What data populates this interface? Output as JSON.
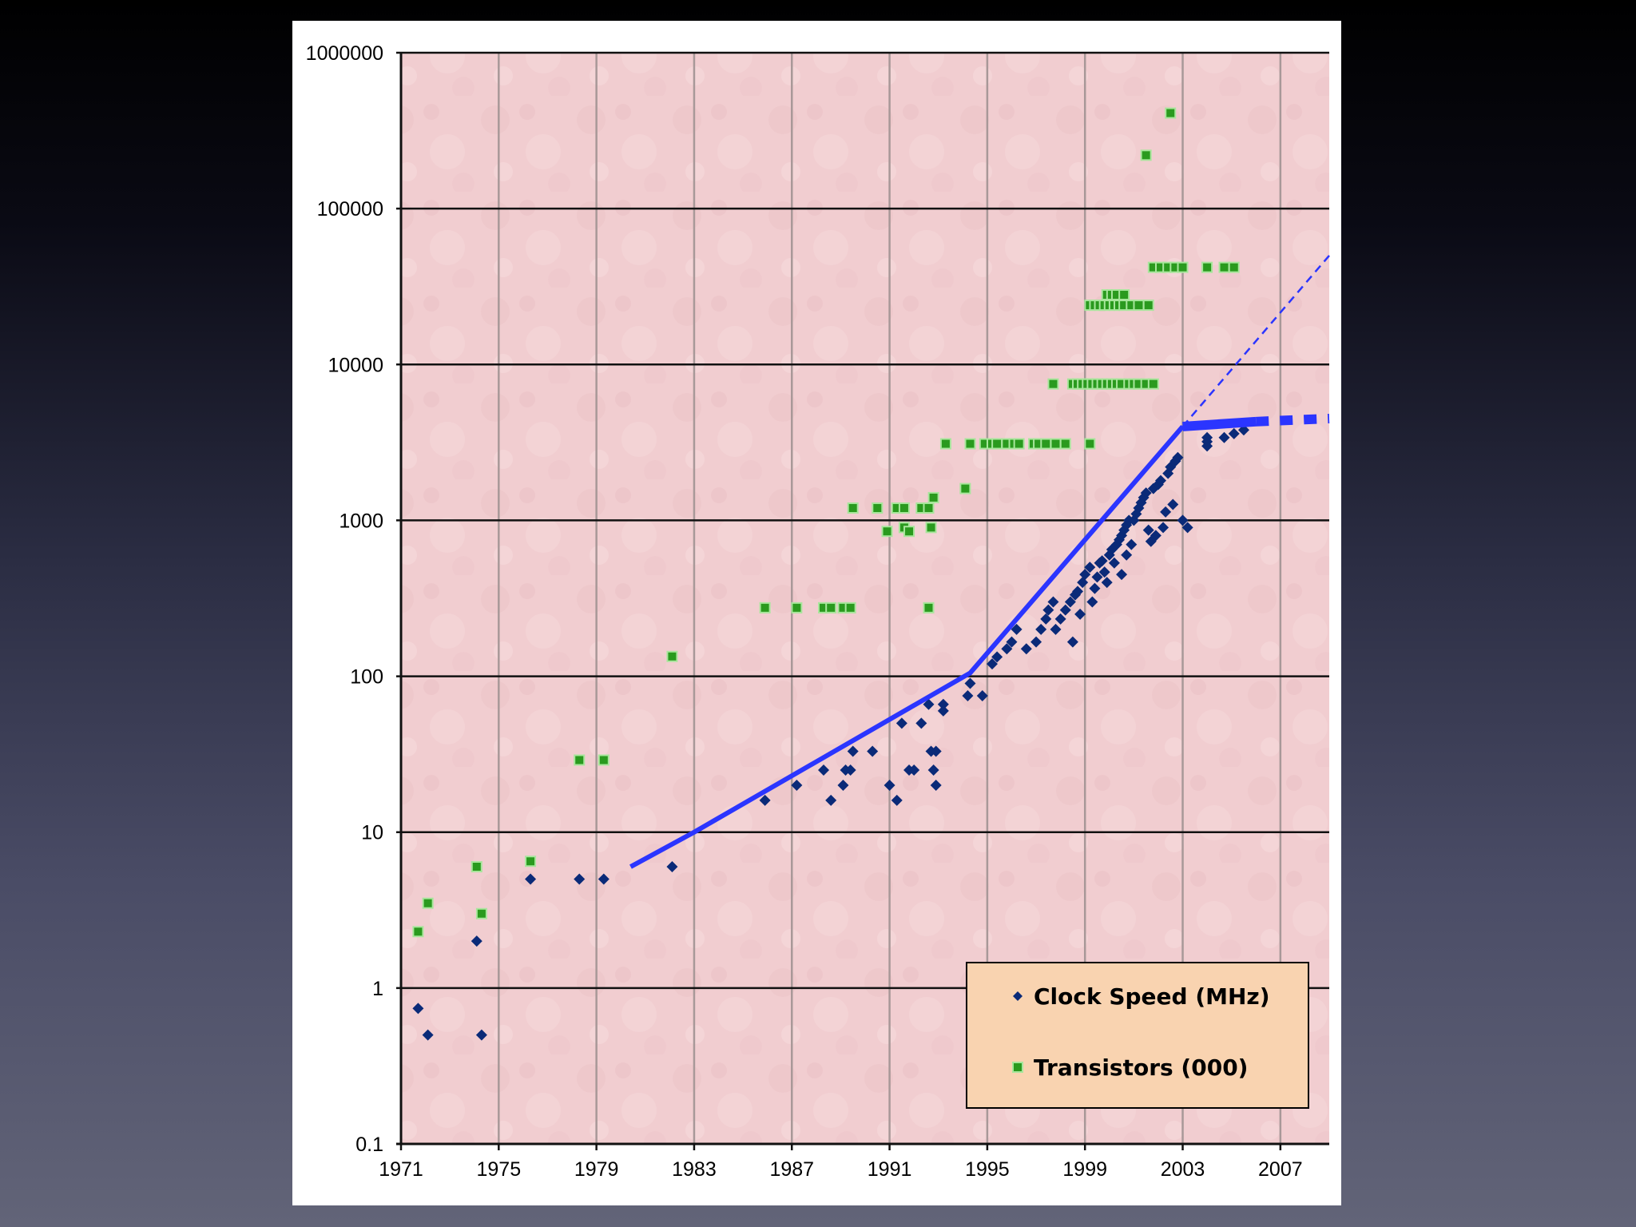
{
  "chart_data": {
    "type": "scatter",
    "title": "",
    "xlabel": "",
    "ylabel": "",
    "y_scale": "log",
    "xlim": [
      1971,
      2009
    ],
    "ylim": [
      0.1,
      1000000
    ],
    "x_ticks": [
      1971,
      1975,
      1979,
      1983,
      1987,
      1991,
      1995,
      1999,
      2003,
      2007
    ],
    "x_tick_labels": [
      "1971",
      "1975",
      "1979",
      "1983",
      "1987",
      "1991",
      "1995",
      "1999",
      "2003",
      "2007"
    ],
    "y_ticks": [
      0.1,
      1,
      10,
      100,
      1000,
      10000,
      100000,
      1000000
    ],
    "y_tick_labels": [
      "0.1",
      "1",
      "10",
      "100",
      "1000",
      "10000",
      "100000",
      "1000000"
    ],
    "grid": true,
    "legend_position": "bottom-right",
    "colors": {
      "plot_background": "#f1cdd0",
      "clock_speed": "#0a2a78",
      "transistors": "#2a9a1e",
      "trend": "#2b35ff",
      "legend_background": "#f9d3b0"
    },
    "series": [
      {
        "name": "Clock Speed (MHz)",
        "marker": "diamond",
        "points": [
          [
            1971.7,
            0.74
          ],
          [
            1972.1,
            0.5
          ],
          [
            1974.1,
            2
          ],
          [
            1974.3,
            0.5
          ],
          [
            1976.3,
            5
          ],
          [
            1978.3,
            5
          ],
          [
            1979.3,
            5
          ],
          [
            1982.1,
            6
          ],
          [
            1985.9,
            16
          ],
          [
            1987.2,
            20
          ],
          [
            1988.3,
            25
          ],
          [
            1988.6,
            16
          ],
          [
            1989.1,
            20
          ],
          [
            1989.2,
            25
          ],
          [
            1989.4,
            25
          ],
          [
            1989.5,
            33
          ],
          [
            1990.3,
            33
          ],
          [
            1991.0,
            20
          ],
          [
            1991.3,
            16
          ],
          [
            1991.5,
            50
          ],
          [
            1991.8,
            25
          ],
          [
            1992.0,
            25
          ],
          [
            1992.3,
            50
          ],
          [
            1992.6,
            66
          ],
          [
            1992.7,
            33
          ],
          [
            1992.8,
            25
          ],
          [
            1992.9,
            20
          ],
          [
            1992.9,
            33
          ],
          [
            1993.2,
            66
          ],
          [
            1993.2,
            60
          ],
          [
            1994.2,
            75
          ],
          [
            1994.3,
            90
          ],
          [
            1994.8,
            75
          ],
          [
            1995.2,
            120
          ],
          [
            1995.4,
            133
          ],
          [
            1995.8,
            150
          ],
          [
            1996.0,
            166
          ],
          [
            1996.2,
            200
          ],
          [
            1996.6,
            150
          ],
          [
            1997.0,
            166
          ],
          [
            1997.2,
            200
          ],
          [
            1997.4,
            233
          ],
          [
            1997.5,
            266
          ],
          [
            1997.7,
            300
          ],
          [
            1997.8,
            200
          ],
          [
            1998.0,
            233
          ],
          [
            1998.2,
            266
          ],
          [
            1998.4,
            300
          ],
          [
            1998.5,
            166
          ],
          [
            1998.6,
            333
          ],
          [
            1998.7,
            350
          ],
          [
            1998.9,
            400
          ],
          [
            1998.8,
            250
          ],
          [
            1999.0,
            450
          ],
          [
            1999.2,
            500
          ],
          [
            1999.3,
            300
          ],
          [
            1999.4,
            366
          ],
          [
            1999.5,
            433
          ],
          [
            1999.6,
            533
          ],
          [
            1999.7,
            550
          ],
          [
            1999.8,
            466
          ],
          [
            1999.9,
            400
          ],
          [
            2000.0,
            600
          ],
          [
            2000.1,
            650
          ],
          [
            2000.2,
            533
          ],
          [
            2000.3,
            700
          ],
          [
            2000.4,
            750
          ],
          [
            2000.5,
            800
          ],
          [
            2000.6,
            866
          ],
          [
            2000.7,
            933
          ],
          [
            2000.8,
            1000
          ],
          [
            2000.9,
            700
          ],
          [
            2000.5,
            450
          ],
          [
            2000.7,
            600
          ],
          [
            2001.0,
            1000
          ],
          [
            2001.1,
            1100
          ],
          [
            2001.2,
            1200
          ],
          [
            2001.3,
            1300
          ],
          [
            2001.4,
            1400
          ],
          [
            2001.5,
            1500
          ],
          [
            2001.6,
            866
          ],
          [
            2001.7,
            733
          ],
          [
            2001.8,
            1600
          ],
          [
            2001.9,
            800
          ],
          [
            2002.0,
            1700
          ],
          [
            2002.1,
            1800
          ],
          [
            2002.2,
            900
          ],
          [
            2002.3,
            1133
          ],
          [
            2002.4,
            2000
          ],
          [
            2002.5,
            2200
          ],
          [
            2002.6,
            1266
          ],
          [
            2002.7,
            2400
          ],
          [
            2002.8,
            2530
          ],
          [
            2003.2,
            900
          ],
          [
            2003.0,
            1000
          ],
          [
            2004.0,
            3000
          ],
          [
            2004.0,
            3200
          ],
          [
            2004.0,
            3400
          ],
          [
            2004.7,
            3400
          ],
          [
            2005.1,
            3600
          ],
          [
            2005.5,
            3800
          ]
        ]
      },
      {
        "name": "Transistors (000)",
        "marker": "square",
        "points": [
          [
            1971.7,
            2.3
          ],
          [
            1972.1,
            3.5
          ],
          [
            1974.1,
            6
          ],
          [
            1974.3,
            3
          ],
          [
            1976.3,
            6.5
          ],
          [
            1978.3,
            29
          ],
          [
            1979.3,
            29
          ],
          [
            1982.1,
            134
          ],
          [
            1985.9,
            275
          ],
          [
            1987.2,
            275
          ],
          [
            1988.3,
            275
          ],
          [
            1988.6,
            275
          ],
          [
            1989.1,
            275
          ],
          [
            1989.4,
            275
          ],
          [
            1992.6,
            275
          ],
          [
            1989.5,
            1200
          ],
          [
            1990.5,
            1200
          ],
          [
            1991.3,
            1200
          ],
          [
            1991.6,
            1200
          ],
          [
            1992.3,
            1200
          ],
          [
            1992.6,
            1200
          ],
          [
            1992.8,
            1400
          ],
          [
            1990.9,
            850
          ],
          [
            1991.6,
            900
          ],
          [
            1991.8,
            850
          ],
          [
            1992.7,
            900
          ],
          [
            1993.3,
            3100
          ],
          [
            1994.3,
            3100
          ],
          [
            1994.1,
            1600
          ],
          [
            1994.9,
            3100
          ],
          [
            1995.2,
            3100
          ],
          [
            1995.4,
            3100
          ],
          [
            1995.8,
            3100
          ],
          [
            1996.1,
            3100
          ],
          [
            1996.3,
            3100
          ],
          [
            1996.9,
            3100
          ],
          [
            1997.1,
            3100
          ],
          [
            1997.4,
            3100
          ],
          [
            1997.8,
            3100
          ],
          [
            1998.2,
            3100
          ],
          [
            1999.2,
            3100
          ],
          [
            1997.7,
            7500
          ],
          [
            1998.5,
            7500
          ],
          [
            1998.7,
            7500
          ],
          [
            1998.9,
            7500
          ],
          [
            1999.1,
            7500
          ],
          [
            1999.3,
            7500
          ],
          [
            1999.5,
            7500
          ],
          [
            1999.7,
            7500
          ],
          [
            1999.9,
            7500
          ],
          [
            2000.1,
            7500
          ],
          [
            2000.3,
            7500
          ],
          [
            2000.5,
            7500
          ],
          [
            2000.8,
            7500
          ],
          [
            2001.0,
            7500
          ],
          [
            2001.2,
            7500
          ],
          [
            2001.5,
            7500
          ],
          [
            2001.8,
            7500
          ],
          [
            1999.2,
            24000
          ],
          [
            1999.4,
            24000
          ],
          [
            1999.6,
            24000
          ],
          [
            1999.8,
            24000
          ],
          [
            2000.0,
            24000
          ],
          [
            2000.2,
            24000
          ],
          [
            2000.4,
            24000
          ],
          [
            2000.6,
            24000
          ],
          [
            2000.9,
            24000
          ],
          [
            2001.2,
            24000
          ],
          [
            2001.6,
            24000
          ],
          [
            1999.9,
            28000
          ],
          [
            2000.1,
            28000
          ],
          [
            2000.3,
            28000
          ],
          [
            2000.6,
            28000
          ],
          [
            2001.8,
            42000
          ],
          [
            2002.1,
            42000
          ],
          [
            2002.4,
            42000
          ],
          [
            2002.7,
            42000
          ],
          [
            2003.0,
            42000
          ],
          [
            2004.0,
            42000
          ],
          [
            2004.7,
            42000
          ],
          [
            2005.1,
            42000
          ],
          [
            2001.5,
            220000
          ],
          [
            2002.5,
            410000
          ]
        ]
      }
    ],
    "trend_lines": [
      {
        "style": "solid",
        "points": [
          [
            1980.4,
            6
          ],
          [
            1983,
            10
          ],
          [
            1994.3,
            105
          ],
          [
            2003,
            4000
          ]
        ]
      },
      {
        "style": "dashed-thin",
        "points": [
          [
            2003,
            4000
          ],
          [
            2009,
            50000
          ]
        ]
      },
      {
        "style": "solid-thick",
        "points": [
          [
            2003,
            4000
          ],
          [
            2006,
            4300
          ]
        ]
      },
      {
        "style": "dashed-thick",
        "points": [
          [
            2006,
            4300
          ],
          [
            2009,
            4500
          ]
        ]
      }
    ]
  }
}
